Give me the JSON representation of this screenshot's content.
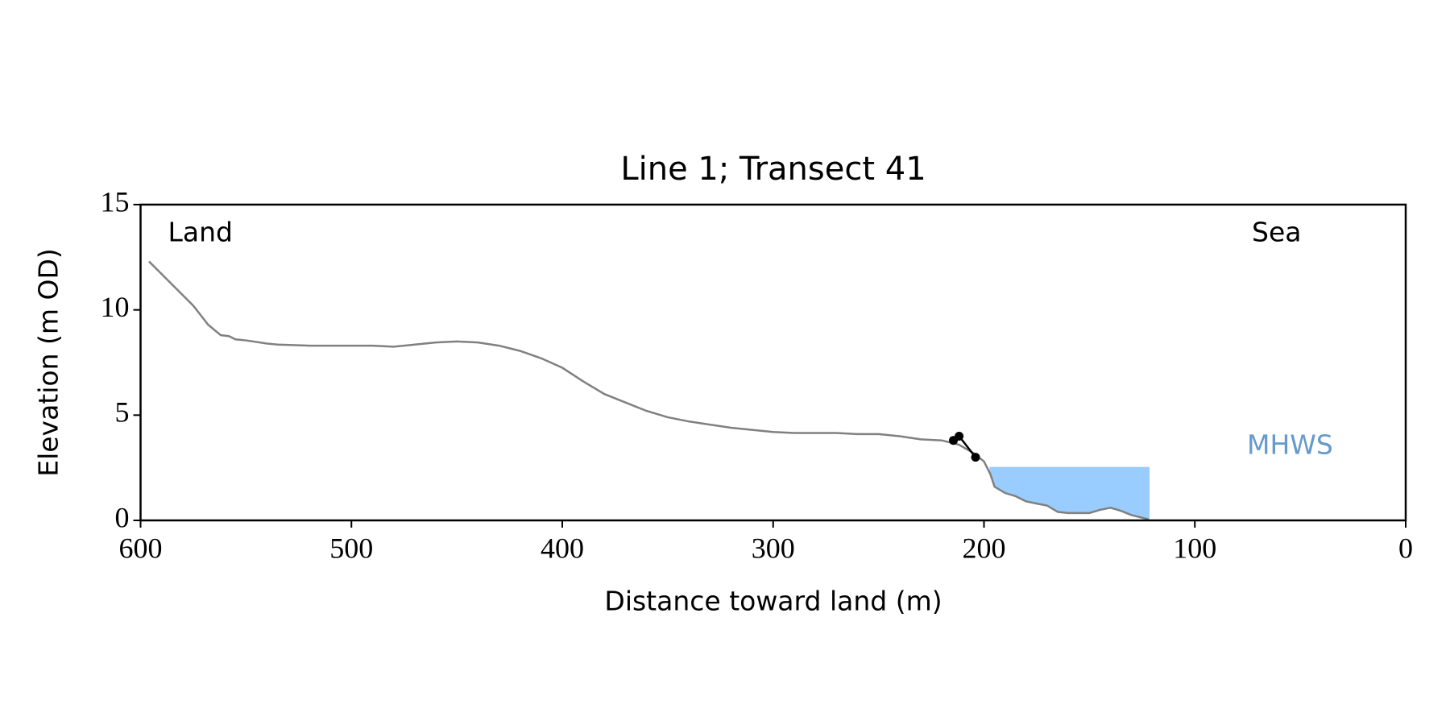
{
  "chart_data": {
    "type": "line",
    "title": "Line 1; Transect 41",
    "x_label": "Distance toward land (m)",
    "y_label": "Elevation (m OD)",
    "xlim": [
      600,
      0
    ],
    "xticks": [
      600,
      500,
      400,
      300,
      200,
      100,
      0
    ],
    "ylim": [
      0,
      15
    ],
    "yticks": [
      0,
      5,
      10,
      15
    ],
    "grid": false,
    "series": [
      {
        "color": "#808080",
        "markers": false,
        "x": [
          596,
          590,
          580,
          575,
          568,
          562,
          558,
          555,
          550,
          540,
          535,
          520,
          500,
          490,
          480,
          470,
          460,
          450,
          440,
          430,
          420,
          410,
          400,
          390,
          380,
          370,
          360,
          350,
          340,
          330,
          320,
          310,
          300,
          290,
          280,
          270,
          260,
          250,
          240,
          230,
          220,
          212,
          205,
          200,
          197,
          195,
          190,
          185,
          180,
          175,
          170,
          165,
          160,
          150,
          145,
          140,
          135,
          130,
          122
        ],
        "values": [
          12.3,
          11.7,
          10.7,
          10.2,
          9.3,
          8.8,
          8.75,
          8.6,
          8.55,
          8.4,
          8.35,
          8.3,
          8.3,
          8.3,
          8.25,
          8.35,
          8.45,
          8.5,
          8.45,
          8.3,
          8.05,
          7.7,
          7.25,
          6.6,
          6.0,
          5.6,
          5.2,
          4.9,
          4.7,
          4.55,
          4.4,
          4.3,
          4.2,
          4.15,
          4.15,
          4.15,
          4.1,
          4.1,
          4.0,
          3.85,
          3.8,
          3.6,
          3.2,
          2.8,
          2.2,
          1.6,
          1.3,
          1.15,
          0.9,
          0.8,
          0.7,
          0.4,
          0.35,
          0.35,
          0.5,
          0.6,
          0.45,
          0.25,
          0.05
        ]
      },
      {
        "color": "#000000",
        "markers": true,
        "x": [
          214.5,
          211.8,
          204
        ],
        "values": [
          3.8,
          4.0,
          3.0
        ]
      }
    ],
    "fill": {
      "label": "MHWS",
      "color": "#99ccff",
      "label_color": "#6699cc",
      "level": 2.54,
      "x": [
        197.4,
        121.5
      ]
    },
    "annotations": [
      "Land",
      "Sea"
    ]
  }
}
